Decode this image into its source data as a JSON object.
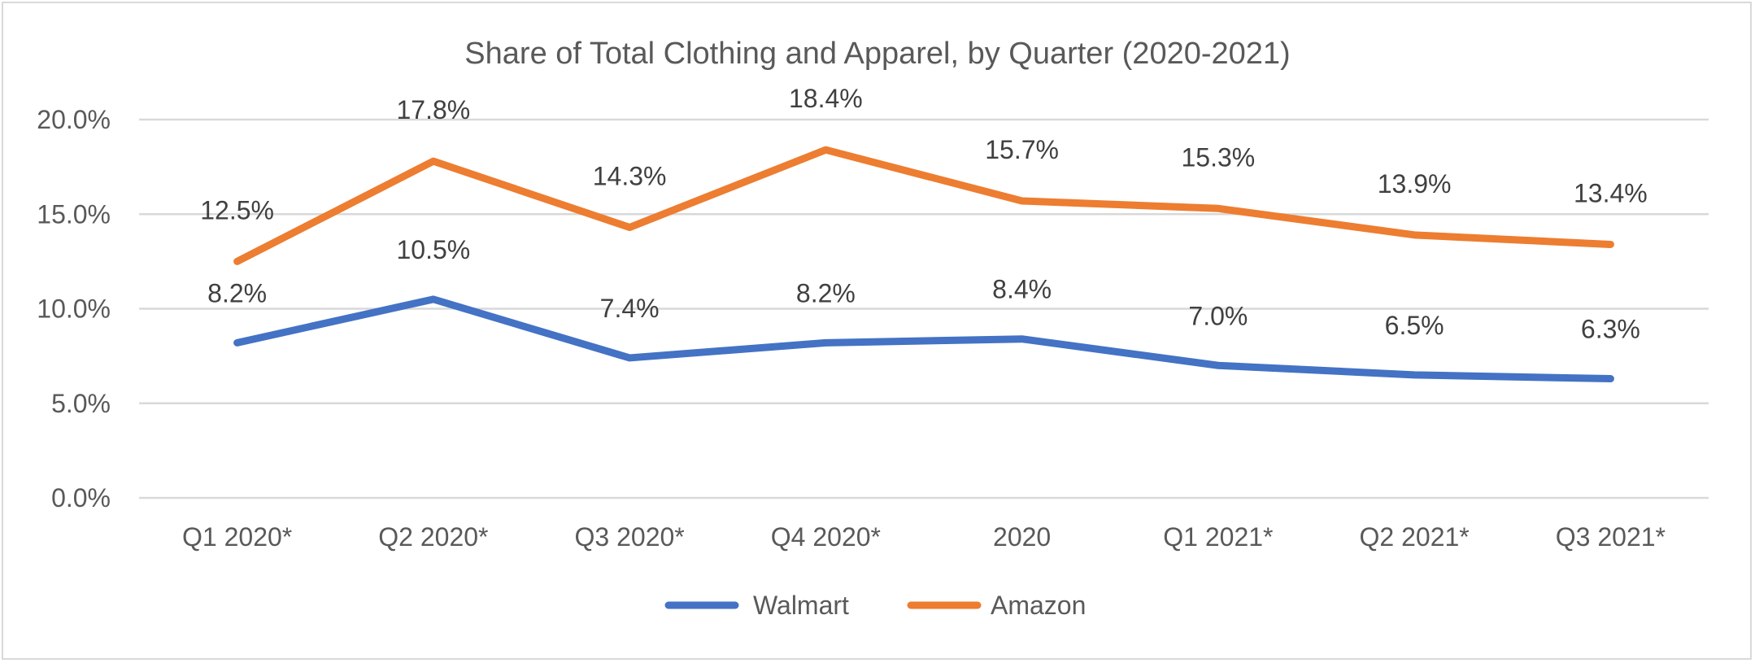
{
  "chart_data": {
    "type": "line",
    "title": "Share of Total Clothing and Apparel, by Quarter (2020-2021)",
    "xlabel": "",
    "ylabel": "",
    "categories": [
      "Q1 2020*",
      "Q2 2020*",
      "Q3 2020*",
      "Q4 2020*",
      "2020",
      "Q1 2021*",
      "Q2 2021*",
      "Q3 2021*"
    ],
    "ylim": [
      0,
      20
    ],
    "yticks": [
      0,
      5,
      10,
      15,
      20
    ],
    "ytick_labels": [
      "0.0%",
      "5.0%",
      "10.0%",
      "15.0%",
      "20.0%"
    ],
    "grid": true,
    "legend_position": "bottom",
    "series": [
      {
        "name": "Walmart",
        "color": "#4472C4",
        "values": [
          8.2,
          10.5,
          7.4,
          8.2,
          8.4,
          7.0,
          6.5,
          6.3
        ],
        "labels": [
          "8.2%",
          "10.5%",
          "7.4%",
          "8.2%",
          "8.4%",
          "7.0%",
          "6.5%",
          "6.3%"
        ]
      },
      {
        "name": "Amazon",
        "color": "#ED7D31",
        "values": [
          12.5,
          17.8,
          14.3,
          18.4,
          15.7,
          15.3,
          13.9,
          13.4
        ],
        "labels": [
          "12.5%",
          "17.8%",
          "14.3%",
          "18.4%",
          "15.7%",
          "15.3%",
          "13.9%",
          "13.4%"
        ]
      }
    ]
  }
}
